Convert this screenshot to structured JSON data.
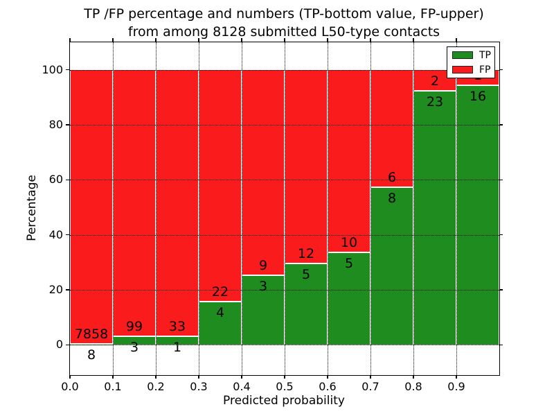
{
  "chart_data": {
    "type": "bar",
    "stacked": true,
    "normalized": "percent",
    "title_line1": "TP /FP percentage and numbers (TP-bottom value, FP-upper)",
    "title_line2": "from among 8128 submitted L50-type contacts",
    "xlabel": "Predicted probability",
    "ylabel": "Percentage",
    "total_contacts": 8128,
    "categories": [
      "0.0-0.1",
      "0.1-0.2",
      "0.2-0.3",
      "0.3-0.4",
      "0.4-0.5",
      "0.5-0.6",
      "0.6-0.7",
      "0.7-0.8",
      "0.8-0.9",
      "0.9-1.0"
    ],
    "series": [
      {
        "name": "TP",
        "color": "#1e8c1e",
        "counts": [
          8,
          3,
          1,
          4,
          3,
          5,
          5,
          8,
          23,
          16
        ],
        "percent": [
          0.1,
          2.94,
          2.94,
          15.38,
          25.0,
          29.41,
          33.33,
          57.14,
          92.0,
          94.12
        ]
      },
      {
        "name": "FP",
        "color": "#fa1c1c",
        "counts": [
          7858,
          99,
          33,
          22,
          9,
          12,
          10,
          6,
          2,
          1
        ],
        "percent": [
          99.9,
          97.06,
          97.06,
          84.62,
          75.0,
          70.59,
          66.67,
          42.86,
          8.0,
          5.88
        ]
      }
    ],
    "xticks": [
      "0.0",
      "0.1",
      "0.2",
      "0.3",
      "0.4",
      "0.5",
      "0.6",
      "0.7",
      "0.8",
      "0.9"
    ],
    "yticks": [
      0,
      20,
      40,
      60,
      80,
      100
    ],
    "xlim": [
      0.0,
      1.0
    ],
    "ylim": [
      -11,
      110
    ],
    "grid": true,
    "legend": {
      "position": "upper right",
      "entries": [
        "TP",
        "FP"
      ]
    }
  }
}
